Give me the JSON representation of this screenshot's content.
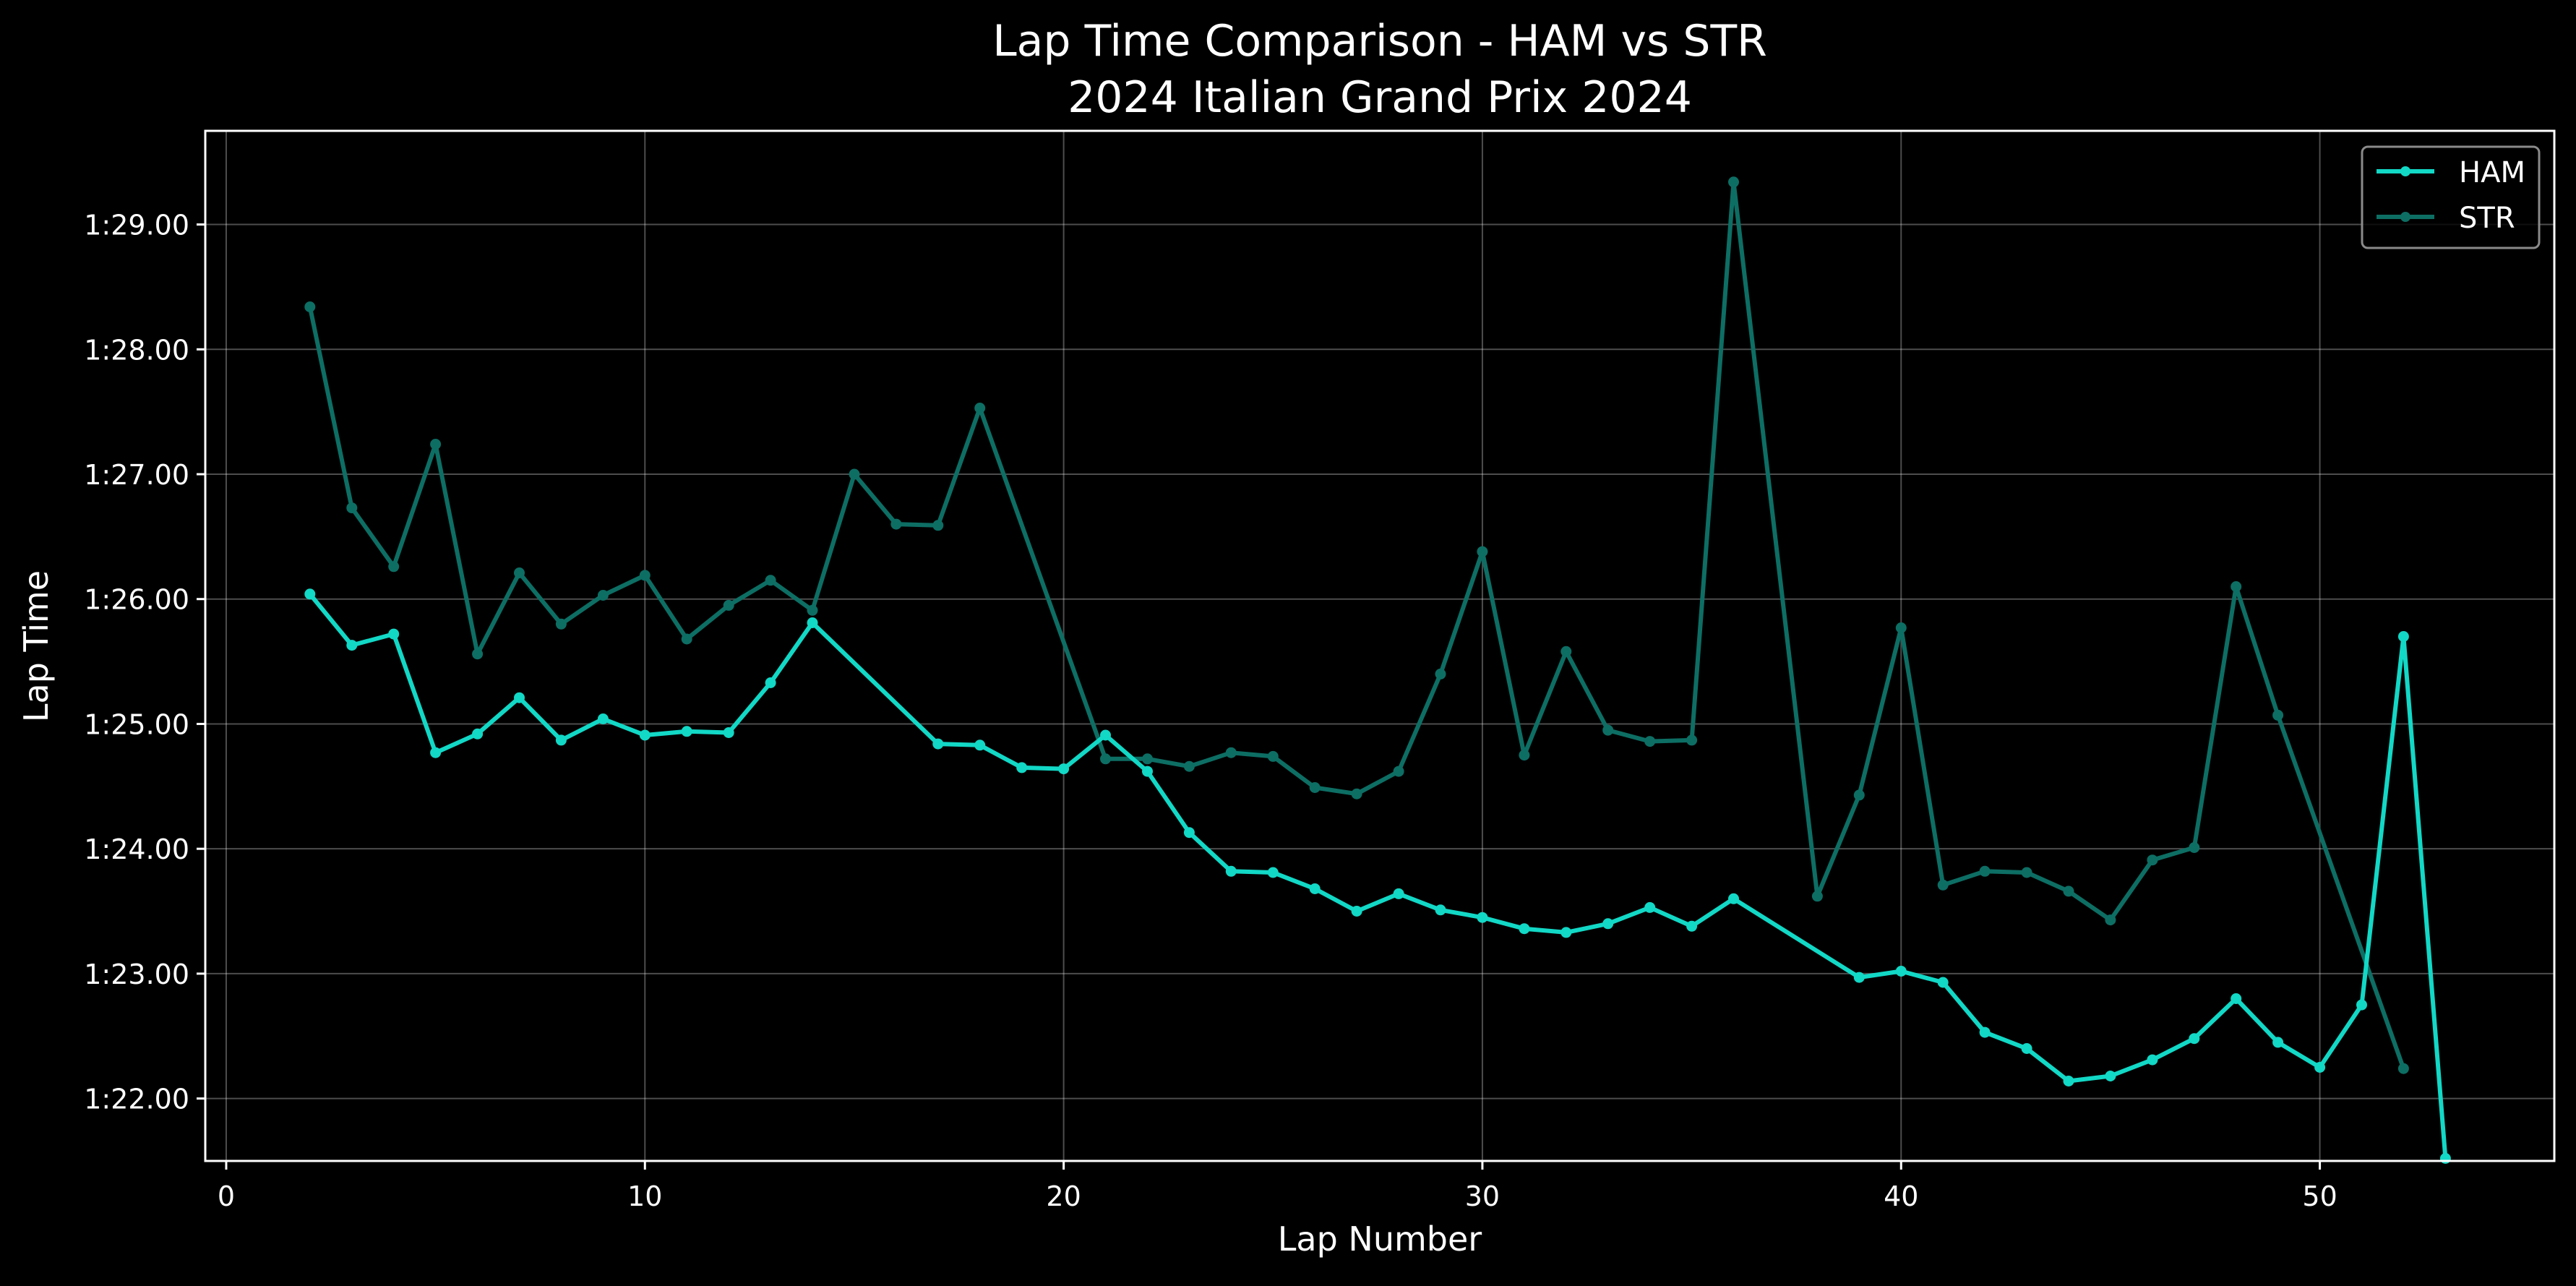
{
  "chart_data": {
    "type": "line",
    "title": "Lap Time Comparison - HAM vs STR",
    "subtitle": "2024 Italian Grand Prix 2024",
    "xlabel": "Lap Number",
    "ylabel": "Lap Time",
    "xlim": [
      -0.5,
      55.6
    ],
    "ylim": [
      81.5,
      89.75
    ],
    "xticks": [
      0,
      10,
      20,
      30,
      40,
      50
    ],
    "yticks": [
      {
        "value": 82,
        "label": "1:22.00"
      },
      {
        "value": 83,
        "label": "1:23.00"
      },
      {
        "value": 84,
        "label": "1:24.00"
      },
      {
        "value": 85,
        "label": "1:25.00"
      },
      {
        "value": 86,
        "label": "1:26.00"
      },
      {
        "value": 87,
        "label": "1:27.00"
      },
      {
        "value": 88,
        "label": "1:28.00"
      },
      {
        "value": 89,
        "label": "1:29.00"
      }
    ],
    "grid": true,
    "legend_position": "top-right",
    "series": [
      {
        "name": "HAM",
        "color": "#12d8c6",
        "points": [
          [
            2,
            86.04
          ],
          [
            3,
            85.63
          ],
          [
            4,
            85.72
          ],
          [
            5,
            84.77
          ],
          [
            6,
            84.92
          ],
          [
            7,
            85.21
          ],
          [
            8,
            84.87
          ],
          [
            9,
            85.04
          ],
          [
            10,
            84.91
          ],
          [
            11,
            84.94
          ],
          [
            12,
            84.93
          ],
          [
            13,
            85.33
          ],
          [
            14,
            85.81
          ],
          [
            17,
            84.84
          ],
          [
            18,
            84.83
          ],
          [
            19,
            84.65
          ],
          [
            20,
            84.64
          ],
          [
            21,
            84.91
          ],
          [
            22,
            84.62
          ],
          [
            23,
            84.13
          ],
          [
            24,
            83.82
          ],
          [
            25,
            83.81
          ],
          [
            26,
            83.68
          ],
          [
            27,
            83.5
          ],
          [
            28,
            83.64
          ],
          [
            29,
            83.51
          ],
          [
            30,
            83.45
          ],
          [
            31,
            83.36
          ],
          [
            32,
            83.33
          ],
          [
            33,
            83.4
          ],
          [
            34,
            83.53
          ],
          [
            35,
            83.38
          ],
          [
            36,
            83.6
          ],
          [
            39,
            82.97
          ],
          [
            40,
            83.02
          ],
          [
            41,
            82.93
          ],
          [
            42,
            82.53
          ],
          [
            43,
            82.4
          ],
          [
            44,
            82.14
          ],
          [
            45,
            82.18
          ],
          [
            46,
            82.31
          ],
          [
            47,
            82.48
          ],
          [
            48,
            82.8
          ],
          [
            49,
            82.45
          ],
          [
            50,
            82.25
          ],
          [
            51,
            82.75
          ],
          [
            52,
            85.7
          ],
          [
            53,
            81.52
          ]
        ]
      },
      {
        "name": "STR",
        "color": "#0d6e64",
        "points": [
          [
            2,
            88.34
          ],
          [
            3,
            86.73
          ],
          [
            4,
            86.26
          ],
          [
            5,
            87.24
          ],
          [
            6,
            85.56
          ],
          [
            7,
            86.21
          ],
          [
            8,
            85.8
          ],
          [
            9,
            86.03
          ],
          [
            10,
            86.19
          ],
          [
            11,
            85.68
          ],
          [
            12,
            85.95
          ],
          [
            13,
            86.15
          ],
          [
            14,
            85.91
          ],
          [
            15,
            87.0
          ],
          [
            16,
            86.6
          ],
          [
            17,
            86.59
          ],
          [
            18,
            87.53
          ],
          [
            21,
            84.72
          ],
          [
            22,
            84.72
          ],
          [
            23,
            84.66
          ],
          [
            24,
            84.77
          ],
          [
            25,
            84.74
          ],
          [
            26,
            84.49
          ],
          [
            27,
            84.44
          ],
          [
            28,
            84.62
          ],
          [
            29,
            85.4
          ],
          [
            30,
            86.38
          ],
          [
            31,
            84.75
          ],
          [
            32,
            85.58
          ],
          [
            33,
            84.95
          ],
          [
            34,
            84.86
          ],
          [
            35,
            84.87
          ],
          [
            36,
            89.34
          ],
          [
            38,
            83.62
          ],
          [
            39,
            84.43
          ],
          [
            40,
            85.77
          ],
          [
            41,
            83.71
          ],
          [
            42,
            83.82
          ],
          [
            43,
            83.81
          ],
          [
            44,
            83.66
          ],
          [
            45,
            83.43
          ],
          [
            46,
            83.91
          ],
          [
            47,
            84.01
          ],
          [
            48,
            86.1
          ],
          [
            49,
            85.07
          ],
          [
            52,
            82.24
          ]
        ]
      }
    ]
  }
}
